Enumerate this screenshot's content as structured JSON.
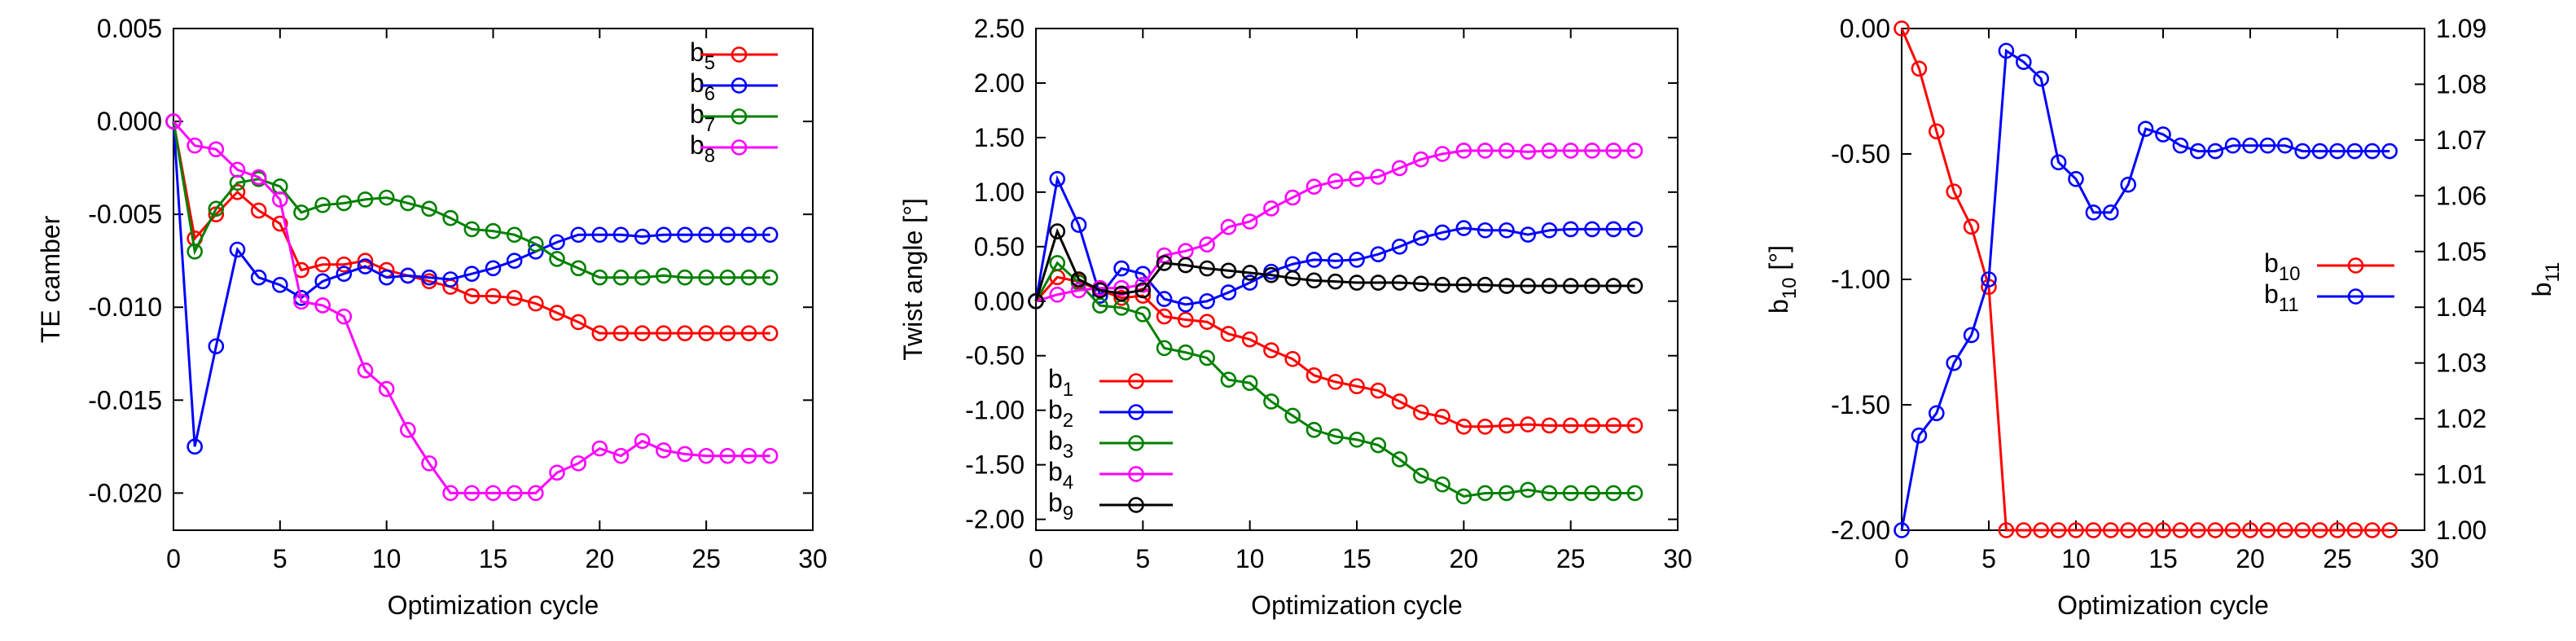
{
  "chart_data": [
    {
      "type": "line",
      "xlabel": "Optimization cycle",
      "ylabel": "TE camber",
      "xlim": [
        0,
        30
      ],
      "ylim": [
        -0.022,
        0.005
      ],
      "xticks": [
        "0",
        "5",
        "10",
        "15",
        "20",
        "25",
        "30"
      ],
      "yticks": [
        "0.005",
        "0.000",
        "-0.005",
        "-0.010",
        "-0.015",
        "-0.020"
      ],
      "grid": false,
      "legend_placement": "top-right",
      "x": [
        0,
        1,
        2,
        3,
        4,
        5,
        6,
        7,
        8,
        9,
        10,
        11,
        12,
        13,
        14,
        15,
        16,
        17,
        18,
        19,
        20,
        21,
        22,
        23,
        24,
        25,
        26,
        27,
        28
      ],
      "series": [
        {
          "name": "b",
          "sub": "5",
          "color": "#ff0000",
          "values": [
            0,
            -0.0063,
            -0.005,
            -0.0038,
            -0.0048,
            -0.0055,
            -0.008,
            -0.0077,
            -0.0077,
            -0.0075,
            -0.008,
            -0.0083,
            -0.0086,
            -0.0089,
            -0.0094,
            -0.0094,
            -0.0095,
            -0.0098,
            -0.0103,
            -0.0108,
            -0.0114,
            -0.0114,
            -0.0114,
            -0.0114,
            -0.0114,
            -0.0114,
            -0.0114,
            -0.0114,
            -0.0114
          ]
        },
        {
          "name": "b",
          "sub": "6",
          "color": "#0000ff",
          "values": [
            0,
            -0.0175,
            -0.0121,
            -0.0069,
            -0.0084,
            -0.0088,
            -0.0095,
            -0.0086,
            -0.0082,
            -0.0078,
            -0.0084,
            -0.0083,
            -0.0084,
            -0.0085,
            -0.0082,
            -0.0079,
            -0.0075,
            -0.007,
            -0.0065,
            -0.0061,
            -0.0061,
            -0.0061,
            -0.0062,
            -0.0061,
            -0.0061,
            -0.0061,
            -0.0061,
            -0.0061,
            -0.0061
          ]
        },
        {
          "name": "b",
          "sub": "7",
          "color": "#008000",
          "values": [
            0,
            -0.007,
            -0.0047,
            -0.0033,
            -0.0031,
            -0.0035,
            -0.0049,
            -0.0045,
            -0.0044,
            -0.0042,
            -0.0041,
            -0.0044,
            -0.0047,
            -0.0052,
            -0.0058,
            -0.0059,
            -0.0061,
            -0.0066,
            -0.0074,
            -0.0079,
            -0.0084,
            -0.0084,
            -0.0084,
            -0.0083,
            -0.0084,
            -0.0084,
            -0.0084,
            -0.0084,
            -0.0084
          ]
        },
        {
          "name": "b",
          "sub": "8",
          "color": "#ff00ff",
          "values": [
            0,
            -0.0013,
            -0.0015,
            -0.0026,
            -0.003,
            -0.0042,
            -0.0097,
            -0.0099,
            -0.0105,
            -0.0134,
            -0.0144,
            -0.0166,
            -0.0184,
            -0.02,
            -0.02,
            -0.02,
            -0.02,
            -0.02,
            -0.0189,
            -0.0184,
            -0.0176,
            -0.018,
            -0.0172,
            -0.0177,
            -0.0179,
            -0.018,
            -0.018,
            -0.018,
            -0.018
          ]
        }
      ]
    },
    {
      "type": "line",
      "xlabel": "Optimization cycle",
      "ylabel": "Twist angle [°]",
      "xlim": [
        0,
        30
      ],
      "ylim": [
        -2.1,
        2.5
      ],
      "xticks": [
        "0",
        "5",
        "10",
        "15",
        "20",
        "25",
        "30"
      ],
      "yticks": [
        "2.50",
        "2.00",
        "1.50",
        "1.00",
        "0.50",
        "0.00",
        "-0.50",
        "-1.00",
        "-1.50",
        "-2.00"
      ],
      "grid": false,
      "legend_placement": "bottom-left",
      "x": [
        0,
        1,
        2,
        3,
        4,
        5,
        6,
        7,
        8,
        9,
        10,
        11,
        12,
        13,
        14,
        15,
        16,
        17,
        18,
        19,
        20,
        21,
        22,
        23,
        24,
        25,
        26,
        27,
        28
      ],
      "series": [
        {
          "name": "b",
          "sub": "1",
          "color": "#ff0000",
          "values": [
            0,
            0.22,
            0.18,
            0.1,
            0.03,
            0.05,
            -0.14,
            -0.17,
            -0.19,
            -0.3,
            -0.35,
            -0.45,
            -0.53,
            -0.68,
            -0.74,
            -0.78,
            -0.82,
            -0.92,
            -1.02,
            -1.06,
            -1.15,
            -1.15,
            -1.14,
            -1.13,
            -1.14,
            -1.14,
            -1.14,
            -1.14,
            -1.14
          ]
        },
        {
          "name": "b",
          "sub": "2",
          "color": "#0000ff",
          "values": [
            0,
            1.12,
            0.7,
            0.05,
            0.3,
            0.25,
            0.02,
            -0.03,
            0.0,
            0.08,
            0.17,
            0.27,
            0.34,
            0.38,
            0.37,
            0.38,
            0.43,
            0.5,
            0.58,
            0.63,
            0.67,
            0.65,
            0.65,
            0.61,
            0.65,
            0.66,
            0.66,
            0.66,
            0.66
          ]
        },
        {
          "name": "b",
          "sub": "3",
          "color": "#008000",
          "values": [
            0,
            0.35,
            0.17,
            -0.04,
            -0.06,
            -0.12,
            -0.43,
            -0.47,
            -0.52,
            -0.72,
            -0.75,
            -0.92,
            -1.05,
            -1.18,
            -1.24,
            -1.27,
            -1.32,
            -1.45,
            -1.6,
            -1.68,
            -1.79,
            -1.76,
            -1.76,
            -1.73,
            -1.76,
            -1.76,
            -1.76,
            -1.76,
            -1.76
          ]
        },
        {
          "name": "b",
          "sub": "4",
          "color": "#ff00ff",
          "values": [
            0,
            0.06,
            0.1,
            0.12,
            0.12,
            0.15,
            0.42,
            0.46,
            0.52,
            0.68,
            0.73,
            0.85,
            0.95,
            1.05,
            1.1,
            1.12,
            1.14,
            1.22,
            1.3,
            1.35,
            1.38,
            1.38,
            1.38,
            1.37,
            1.38,
            1.38,
            1.38,
            1.38,
            1.38
          ]
        },
        {
          "name": "b",
          "sub": "9",
          "color": "#000000",
          "values": [
            0,
            0.64,
            0.2,
            0.1,
            0.07,
            0.1,
            0.35,
            0.33,
            0.3,
            0.28,
            0.26,
            0.24,
            0.21,
            0.19,
            0.18,
            0.17,
            0.17,
            0.17,
            0.16,
            0.15,
            0.15,
            0.15,
            0.14,
            0.14,
            0.14,
            0.14,
            0.14,
            0.14,
            0.14
          ]
        }
      ]
    },
    {
      "type": "line",
      "xlabel": "Optimization cycle",
      "ylabel": "b",
      "ylabel_sub": "10",
      "ylabel_unit": " [°]",
      "y2label": "b",
      "y2label_sub": "11",
      "xlim": [
        0,
        30
      ],
      "ylim": [
        -2.0,
        0.0
      ],
      "y2lim": [
        1.0,
        1.09
      ],
      "xticks": [
        "0",
        "5",
        "10",
        "15",
        "20",
        "25",
        "30"
      ],
      "yticks": [
        "0.00",
        "-0.50",
        "-1.00",
        "-1.50",
        "-2.00"
      ],
      "y2ticks": [
        "1.09",
        "1.08",
        "1.07",
        "1.06",
        "1.05",
        "1.04",
        "1.03",
        "1.02",
        "1.01",
        "1.00"
      ],
      "grid": false,
      "legend_placement": "right",
      "x": [
        0,
        1,
        2,
        3,
        4,
        5,
        6,
        7,
        8,
        9,
        10,
        11,
        12,
        13,
        14,
        15,
        16,
        17,
        18,
        19,
        20,
        21,
        22,
        23,
        24,
        25,
        26,
        27,
        28
      ],
      "series": [
        {
          "name": "b",
          "sub": "10",
          "axis": "left",
          "color": "#ff0000",
          "values": [
            0,
            -0.16,
            -0.41,
            -0.65,
            -0.79,
            -1.03,
            -2.0,
            -2.0,
            -2.0,
            -2.0,
            -2.0,
            -2.0,
            -2.0,
            -2.0,
            -2.0,
            -2.0,
            -2.0,
            -2.0,
            -2.0,
            -2.0,
            -2.0,
            -2.0,
            -2.0,
            -2.0,
            -2.0,
            -2.0,
            -2.0,
            -2.0,
            -2.0
          ]
        },
        {
          "name": "b",
          "sub": "11",
          "axis": "right",
          "color": "#0000ff",
          "values": [
            1.0,
            1.017,
            1.021,
            1.03,
            1.035,
            1.045,
            1.086,
            1.084,
            1.081,
            1.066,
            1.063,
            1.057,
            1.057,
            1.062,
            1.072,
            1.071,
            1.069,
            1.068,
            1.068,
            1.069,
            1.069,
            1.069,
            1.069,
            1.068,
            1.068,
            1.068,
            1.068,
            1.068,
            1.068
          ]
        }
      ]
    }
  ]
}
